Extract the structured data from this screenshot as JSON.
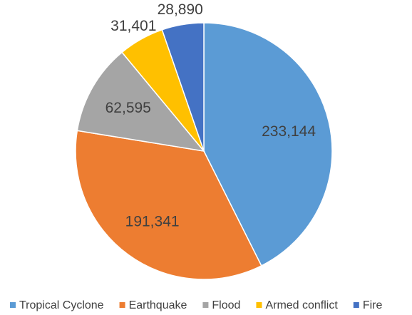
{
  "chart_data": {
    "type": "pie",
    "title": "",
    "categories": [
      "Tropical Cyclone",
      "Earthquake",
      "Flood",
      "Armed conflict",
      "Fire"
    ],
    "values": [
      233144,
      191341,
      62595,
      31401,
      28890
    ],
    "value_labels": [
      "233,144",
      "191,341",
      "62,595",
      "31,401",
      "28,890"
    ],
    "colors": [
      "#5B9BD5",
      "#ED7D31",
      "#A5A5A5",
      "#FFC000",
      "#4472C4"
    ],
    "start": "12 o'clock",
    "direction": "clockwise",
    "legend_position": "bottom"
  }
}
